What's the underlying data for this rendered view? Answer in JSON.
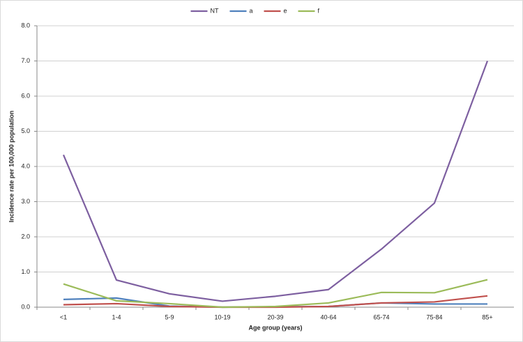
{
  "chart_data": {
    "type": "line",
    "x_label": "Age group (years)",
    "y_label": "Incidence rate per 100,000 population",
    "categories": [
      "<1",
      "1-4",
      "5-9",
      "10-19",
      "20-39",
      "40-64",
      "65-74",
      "75-84",
      "85+"
    ],
    "series": [
      {
        "name": "NT",
        "color": "#7d5fa0",
        "values": [
          4.33,
          0.77,
          0.38,
          0.17,
          0.31,
          0.5,
          1.65,
          2.96,
          7.0
        ]
      },
      {
        "name": "a",
        "color": "#4f81bd",
        "values": [
          0.22,
          0.26,
          0.03,
          0.0,
          0.01,
          0.02,
          0.12,
          0.09,
          0.09
        ]
      },
      {
        "name": "e",
        "color": "#c0504d",
        "values": [
          0.07,
          0.1,
          0.02,
          0.0,
          0.0,
          0.02,
          0.12,
          0.15,
          0.32
        ]
      },
      {
        "name": "f",
        "color": "#9bbb59",
        "values": [
          0.66,
          0.18,
          0.1,
          0.0,
          0.02,
          0.12,
          0.42,
          0.41,
          0.78
        ]
      }
    ],
    "ylim": [
      0,
      8
    ],
    "yticks": [
      {
        "value": 0,
        "label": "0.0"
      },
      {
        "value": 1,
        "label": "1.0"
      },
      {
        "value": 2,
        "label": "2.0"
      },
      {
        "value": 3,
        "label": "3.0"
      },
      {
        "value": 4,
        "label": "4.0"
      },
      {
        "value": 5,
        "label": "5.0"
      },
      {
        "value": 6,
        "label": "6.0"
      },
      {
        "value": 7,
        "label": "7.0"
      },
      {
        "value": 8,
        "label": "8.0"
      }
    ],
    "grid": true,
    "legend": "top"
  }
}
